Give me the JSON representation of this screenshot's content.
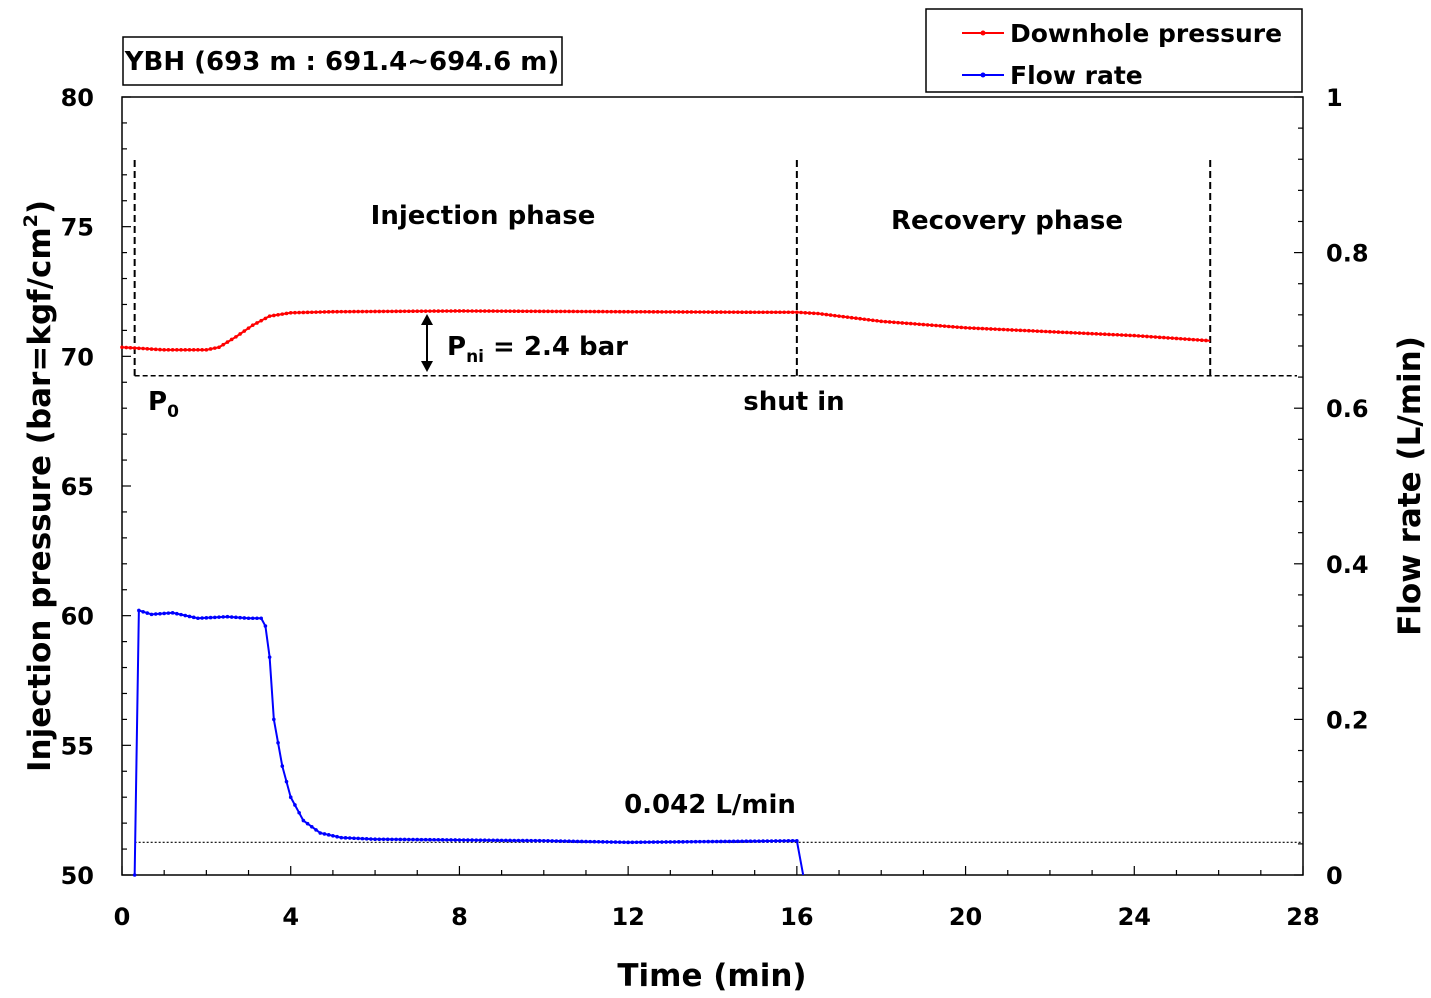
{
  "chart_data": {
    "type": "line",
    "x_label": "Time (min)",
    "y_left_label": "Injection pressure (bar=kgf/cm",
    "y_left_label_sup": "2",
    "y_left_label_close": ")",
    "y_right_label": "Flow rate (L/min)",
    "xlim": [
      0,
      28
    ],
    "ylim_left": [
      50,
      80
    ],
    "ylim_right": [
      0,
      1
    ],
    "x_ticks": [
      0,
      4,
      8,
      12,
      16,
      20,
      24,
      28
    ],
    "y_left_ticks": [
      50,
      55,
      60,
      65,
      70,
      75,
      80
    ],
    "y_right_ticks": [
      0,
      0.2,
      0.4,
      0.6,
      0.8,
      1
    ],
    "x_tick_labels": [
      "0",
      "4",
      "8",
      "12",
      "16",
      "20",
      "24",
      "28"
    ],
    "y_left_tick_labels": [
      "50",
      "55",
      "60",
      "65",
      "70",
      "75",
      "80"
    ],
    "y_right_tick_labels": [
      "0",
      "0.2",
      "0.4",
      "0.6",
      "0.8",
      "1"
    ],
    "title_box": "YBH (693 m : 691.4~694.6 m)",
    "legend": [
      "Downhole pressure",
      "Flow rate"
    ],
    "colors": {
      "pressure": "#ff0000",
      "flow": "#0000ff"
    },
    "series": [
      {
        "name": "Downhole pressure",
        "axis": "left",
        "points": [
          [
            0,
            70.35
          ],
          [
            0.5,
            70.3
          ],
          [
            1,
            70.25
          ],
          [
            2,
            70.25
          ],
          [
            2.3,
            70.35
          ],
          [
            2.7,
            70.75
          ],
          [
            3.1,
            71.2
          ],
          [
            3.5,
            71.55
          ],
          [
            4,
            71.68
          ],
          [
            5,
            71.72
          ],
          [
            8,
            71.75
          ],
          [
            12,
            71.72
          ],
          [
            15,
            71.7
          ],
          [
            16,
            71.7
          ],
          [
            16.5,
            71.65
          ],
          [
            18,
            71.35
          ],
          [
            20,
            71.1
          ],
          [
            22,
            70.95
          ],
          [
            24,
            70.8
          ],
          [
            25.8,
            70.6
          ]
        ]
      },
      {
        "name": "Flow rate",
        "axis": "right",
        "points": [
          [
            0.3,
            0.0
          ],
          [
            0.4,
            0.34
          ],
          [
            0.7,
            0.335
          ],
          [
            1.2,
            0.337
          ],
          [
            1.8,
            0.33
          ],
          [
            2.5,
            0.332
          ],
          [
            3.0,
            0.33
          ],
          [
            3.3,
            0.33
          ],
          [
            3.4,
            0.32
          ],
          [
            3.5,
            0.28
          ],
          [
            3.6,
            0.2
          ],
          [
            3.8,
            0.14
          ],
          [
            4.0,
            0.1
          ],
          [
            4.3,
            0.07
          ],
          [
            4.7,
            0.054
          ],
          [
            5.2,
            0.048
          ],
          [
            6,
            0.046
          ],
          [
            8,
            0.045
          ],
          [
            10,
            0.044
          ],
          [
            12,
            0.042
          ],
          [
            14,
            0.043
          ],
          [
            16,
            0.044
          ],
          [
            16.15,
            0.0
          ]
        ]
      }
    ],
    "reference_lines": {
      "p0_pressure": 69.25,
      "flow_steady": 0.042,
      "dashed_x": [
        0.3,
        16,
        25.8
      ]
    },
    "annotations": {
      "injection_phase": "Injection phase",
      "recovery_phase": "Recovery phase",
      "p0": "P",
      "p0_sub": "0",
      "shut_in": "shut in",
      "pni_main": "P",
      "pni_sub": "ni",
      "pni_value": " = 2.4 bar",
      "flow_value": "0.042 L/min"
    }
  }
}
